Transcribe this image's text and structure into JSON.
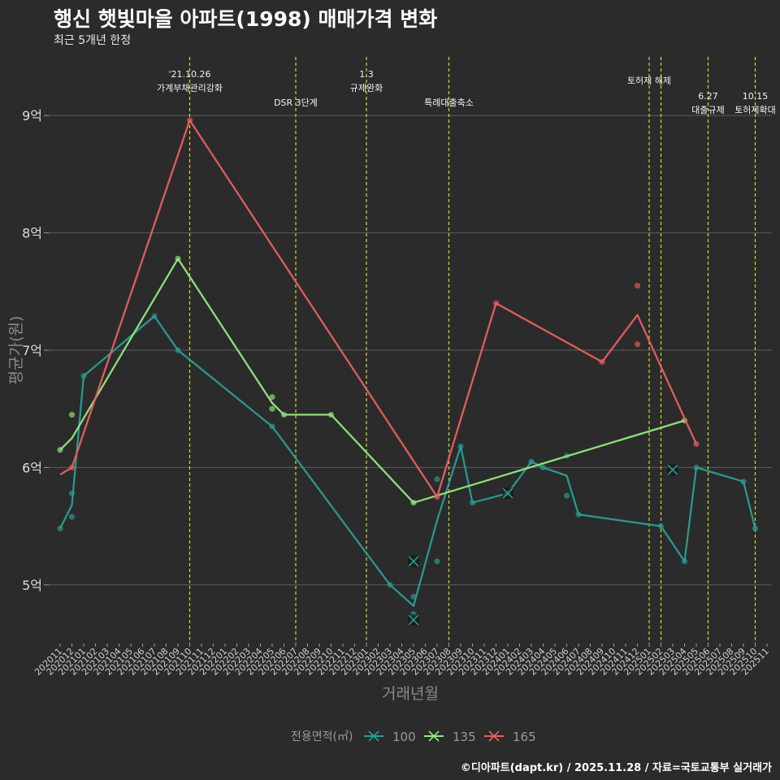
{
  "title": "행신 햇빛마을 아파트(1998) 매매가격 변화",
  "subtitle": "최근 5개년 한정",
  "credit": "©디아파트(dapt.kr) / 2025.11.28 / 자료=국토교통부 실거래가",
  "chart_data": {
    "type": "line",
    "xlabel": "거래년월",
    "ylabel": "평균가(원)",
    "ylim": [
      4.5,
      9.5
    ],
    "yticks": [
      5,
      6,
      7,
      8,
      9
    ],
    "ytick_labels": [
      "5억",
      "6억",
      "7억",
      "8억",
      "9억"
    ],
    "categories": [
      "202011",
      "202012",
      "202101",
      "202102",
      "202103",
      "202104",
      "202105",
      "202106",
      "202107",
      "202108",
      "202109",
      "202110",
      "202111",
      "202112",
      "202201",
      "202202",
      "202203",
      "202204",
      "202205",
      "202206",
      "202207",
      "202208",
      "202209",
      "202210",
      "202211",
      "202212",
      "202301",
      "202302",
      "202303",
      "202304",
      "202305",
      "202306",
      "202307",
      "202308",
      "202309",
      "202310",
      "202311",
      "202312",
      "202401",
      "202402",
      "202403",
      "202404",
      "202405",
      "202406",
      "202407",
      "202408",
      "202409",
      "202410",
      "202411",
      "202412",
      "202501",
      "202502",
      "202503",
      "202504",
      "202505",
      "202506",
      "202507",
      "202508",
      "202509",
      "202510",
      "202511"
    ],
    "legend_title": "전용면적(㎡)",
    "legend_position": "bottom",
    "series": [
      {
        "name": "100",
        "color": "#2a9d95",
        "line": [
          [
            0,
            5.48
          ],
          [
            1,
            5.68
          ],
          [
            2,
            6.78
          ],
          [
            8,
            7.29
          ],
          [
            10,
            7.0
          ],
          [
            18,
            6.35
          ],
          [
            28,
            5.0
          ],
          [
            30,
            4.82
          ],
          [
            32,
            5.55
          ],
          [
            34,
            6.18
          ],
          [
            35,
            5.7
          ],
          [
            38,
            5.78
          ],
          [
            40,
            6.05
          ],
          [
            41,
            6.0
          ],
          [
            43,
            5.93
          ],
          [
            44,
            5.6
          ],
          [
            51,
            5.5
          ],
          [
            53,
            5.2
          ],
          [
            54,
            6.0
          ],
          [
            58,
            5.88
          ],
          [
            59,
            5.48
          ]
        ],
        "points": [
          [
            0,
            5.48
          ],
          [
            1,
            5.78
          ],
          [
            1,
            5.58
          ],
          [
            2,
            6.78
          ],
          [
            8,
            7.29
          ],
          [
            10,
            7.0
          ],
          [
            18,
            6.35
          ],
          [
            28,
            5.0
          ],
          [
            30,
            4.9
          ],
          [
            30,
            4.75
          ],
          [
            32,
            5.9
          ],
          [
            32,
            5.2
          ],
          [
            34,
            6.18
          ],
          [
            35,
            5.7
          ],
          [
            38,
            5.78
          ],
          [
            40,
            6.05
          ],
          [
            41,
            6.0
          ],
          [
            43,
            6.1
          ],
          [
            43,
            5.76
          ],
          [
            44,
            5.6
          ],
          [
            51,
            5.5
          ],
          [
            53,
            5.2
          ],
          [
            54,
            6.0
          ],
          [
            58,
            5.88
          ],
          [
            59,
            5.48
          ]
        ],
        "cancelled": [
          [
            30,
            5.2
          ],
          [
            30,
            4.7
          ],
          [
            38,
            5.78
          ],
          [
            52,
            5.98
          ]
        ]
      },
      {
        "name": "135",
        "color": "#93e87f",
        "line": [
          [
            0,
            6.15
          ],
          [
            1,
            6.25
          ],
          [
            10,
            7.78
          ],
          [
            18,
            6.55
          ],
          [
            19,
            6.45
          ],
          [
            23,
            6.45
          ],
          [
            30,
            5.7
          ],
          [
            53,
            6.4
          ]
        ],
        "points": [
          [
            0,
            6.15
          ],
          [
            1,
            6.45
          ],
          [
            10,
            7.78
          ],
          [
            18,
            6.6
          ],
          [
            18,
            6.5
          ],
          [
            19,
            6.45
          ],
          [
            23,
            6.45
          ],
          [
            30,
            5.7
          ],
          [
            53,
            6.4
          ]
        ]
      },
      {
        "name": "165",
        "color": "#e8605e",
        "line": [
          [
            0,
            5.94
          ],
          [
            1,
            6.0
          ],
          [
            11,
            8.96
          ],
          [
            32,
            5.75
          ],
          [
            37,
            7.4
          ],
          [
            46,
            6.9
          ],
          [
            49,
            7.3
          ],
          [
            54,
            6.2
          ]
        ],
        "points": [
          [
            1,
            6.0
          ],
          [
            11,
            8.96
          ],
          [
            32,
            5.75
          ],
          [
            37,
            7.4
          ],
          [
            46,
            6.9
          ],
          [
            49,
            7.05
          ],
          [
            49,
            7.55
          ],
          [
            54,
            6.2
          ]
        ]
      }
    ],
    "events": [
      {
        "x": 11,
        "lines": [
          "'21.10.26",
          "가계부채관리강화"
        ],
        "row": "top"
      },
      {
        "x": 20,
        "lines": [
          "DSR 3단계"
        ],
        "row": "low"
      },
      {
        "x": 26,
        "lines": [
          "1.3",
          "규제완화"
        ],
        "row": "top"
      },
      {
        "x": 33,
        "lines": [
          "특례대출축소"
        ],
        "row": "low"
      },
      {
        "x": 50,
        "lines": [
          "토허제 해제"
        ],
        "row": "mid"
      },
      {
        "x": 51,
        "lines": [],
        "row": "none"
      },
      {
        "x": 55,
        "lines": [
          "6.27",
          "대출규제"
        ],
        "row": "low2"
      },
      {
        "x": 59,
        "lines": [
          "10.15",
          "토허제확대"
        ],
        "row": "low2"
      }
    ]
  }
}
